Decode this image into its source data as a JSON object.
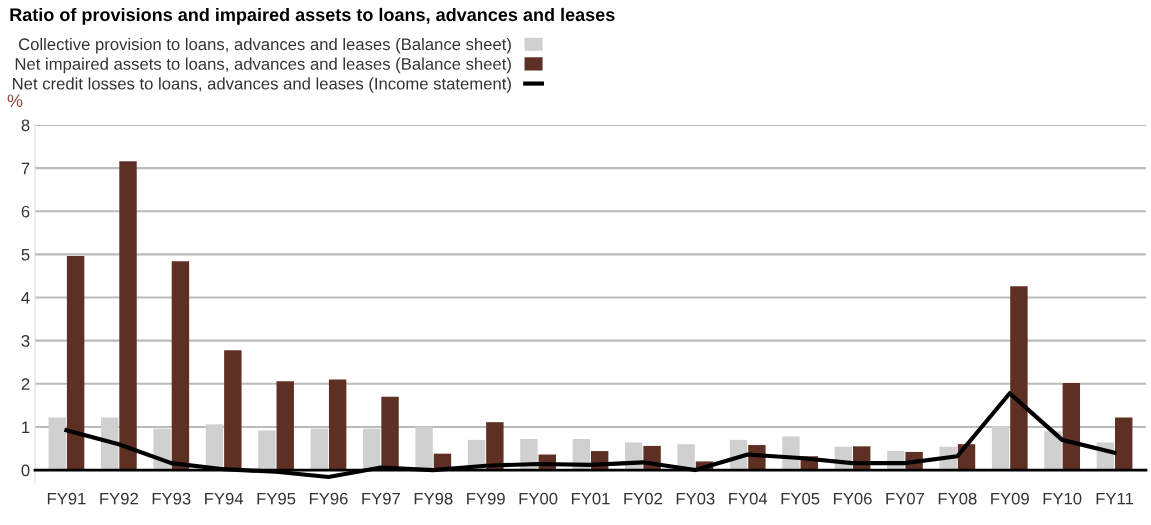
{
  "chart_data": {
    "type": "bar",
    "title": "Ratio of provisions and impaired assets to loans, advances and leases",
    "ylabel": "%",
    "categories": [
      "FY91",
      "FY92",
      "FY93",
      "FY94",
      "FY95",
      "FY96",
      "FY97",
      "FY98",
      "FY99",
      "FY00",
      "FY01",
      "FY02",
      "FY03",
      "FY04",
      "FY05",
      "FY06",
      "FY07",
      "FY08",
      "FY09",
      "FY10",
      "FY11"
    ],
    "series": [
      {
        "name": "Collective provision to loans, advances and leases (Balance sheet)",
        "color": "#d0d0d0",
        "values": [
          1.22,
          1.22,
          0.96,
          1.06,
          0.92,
          0.96,
          0.96,
          1.0,
          0.7,
          0.72,
          0.72,
          0.64,
          0.6,
          0.7,
          0.78,
          0.54,
          0.44,
          0.54,
          1.02,
          0.9,
          0.64
        ]
      },
      {
        "name": "Net impaired assets to loans, advances and leases (Balance sheet)",
        "color": "#5e3024",
        "values": [
          4.96,
          7.16,
          4.84,
          2.78,
          2.06,
          2.1,
          1.7,
          0.38,
          1.11,
          0.36,
          0.44,
          0.56,
          0.2,
          0.58,
          0.32,
          0.55,
          0.42,
          0.6,
          4.26,
          2.02,
          1.22
        ]
      },
      {
        "name": "Net credit losses to loans, advances and leases (Income statement)",
        "color": "#000000",
        "type": "line",
        "values": [
          0.92,
          0.6,
          0.16,
          0.02,
          -0.04,
          -0.16,
          0.06,
          0,
          0.1,
          0.14,
          0.12,
          0.18,
          0,
          0.36,
          0.28,
          0.16,
          0.16,
          0.32,
          1.78,
          0.7,
          0.4
        ]
      }
    ],
    "ylim": [
      -0.3,
      8
    ],
    "yticks": [
      0,
      1,
      2,
      3,
      4,
      5,
      6,
      7,
      8
    ],
    "grid": "y",
    "legend": "top left",
    "marker": "none",
    "line_style": "solid"
  }
}
